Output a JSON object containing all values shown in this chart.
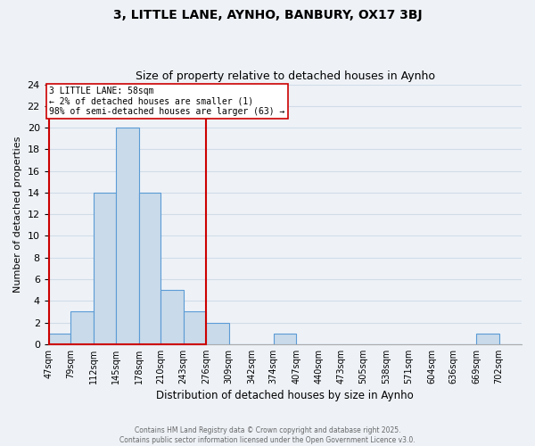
{
  "title": "3, LITTLE LANE, AYNHO, BANBURY, OX17 3BJ",
  "subtitle": "Size of property relative to detached houses in Aynho",
  "xlabel": "Distribution of detached houses by size in Aynho",
  "ylabel": "Number of detached properties",
  "bin_labels": [
    "47sqm",
    "79sqm",
    "112sqm",
    "145sqm",
    "178sqm",
    "210sqm",
    "243sqm",
    "276sqm",
    "309sqm",
    "342sqm",
    "374sqm",
    "407sqm",
    "440sqm",
    "473sqm",
    "505sqm",
    "538sqm",
    "571sqm",
    "604sqm",
    "636sqm",
    "669sqm",
    "702sqm"
  ],
  "bin_edges": [
    47,
    79,
    112,
    145,
    178,
    210,
    243,
    276,
    309,
    342,
    374,
    407,
    440,
    473,
    505,
    538,
    571,
    604,
    636,
    669,
    702,
    735
  ],
  "counts": [
    1,
    3,
    14,
    20,
    14,
    5,
    3,
    2,
    0,
    0,
    1,
    0,
    0,
    0,
    0,
    0,
    0,
    0,
    0,
    1,
    0
  ],
  "bar_color": "#c9daea",
  "bar_edge_color": "#5b9bd5",
  "highlight_color": "#cc0000",
  "annotation_text": "3 LITTLE LANE: 58sqm\n← 2% of detached houses are smaller (1)\n98% of semi-detached houses are larger (63) →",
  "annotation_box_color": "white",
  "annotation_box_edge_color": "#cc0000",
  "grid_color": "#d0dce8",
  "background_color": "#eef2f7",
  "footer_text": "Contains HM Land Registry data © Crown copyright and database right 2025.\nContains public sector information licensed under the Open Government Licence v3.0.",
  "ylim": [
    0,
    24
  ],
  "yticks": [
    0,
    2,
    4,
    6,
    8,
    10,
    12,
    14,
    16,
    18,
    20,
    22,
    24
  ]
}
